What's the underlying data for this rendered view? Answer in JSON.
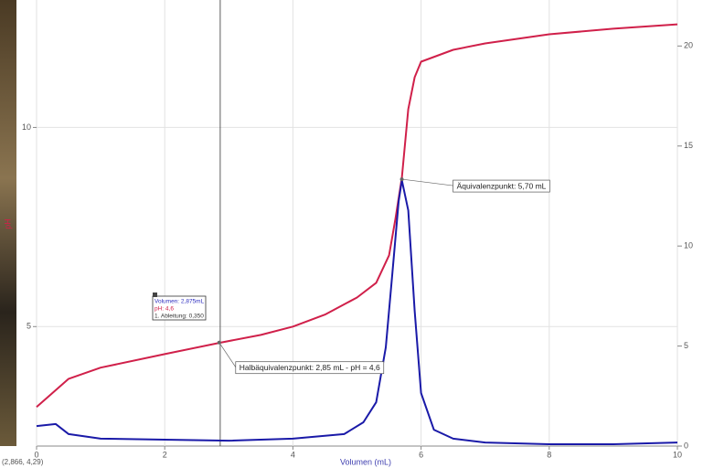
{
  "chart_data": {
    "type": "line",
    "x_label": "Volumen (mL)",
    "y_label": "pH",
    "xlim": [
      0,
      10
    ],
    "xticks": [
      0,
      2,
      4,
      6,
      8,
      10
    ],
    "ylim": [
      2.0,
      13.2
    ],
    "yticks": [
      5,
      10
    ],
    "y2lim": [
      0,
      22.3
    ],
    "y2ticks": [
      0,
      5,
      10,
      15,
      20
    ],
    "grid": true,
    "series": [
      {
        "color": "#d0204a",
        "axis": "y",
        "x": [
          0,
          0.5,
          1,
          2,
          2.85,
          3.5,
          4,
          4.5,
          5,
          5.3,
          5.5,
          5.6,
          5.7,
          5.8,
          5.9,
          6.0,
          6.5,
          7,
          8,
          9,
          10
        ],
        "values": [
          2.98,
          3.69,
          3.97,
          4.31,
          4.59,
          4.79,
          5.0,
          5.3,
          5.73,
          6.1,
          6.79,
          7.71,
          8.74,
          10.46,
          11.26,
          11.65,
          11.95,
          12.11,
          12.34,
          12.48,
          12.59
        ]
      },
      {
        "color": "#1a1aa8",
        "axis": "y2",
        "x": [
          0,
          0.3,
          0.5,
          1,
          2,
          3,
          4,
          4.8,
          5.1,
          5.3,
          5.45,
          5.55,
          5.65,
          5.7,
          5.8,
          5.9,
          6.0,
          6.2,
          6.5,
          7,
          8,
          9,
          10
        ],
        "values": [
          1.0,
          1.1,
          0.6,
          0.37,
          0.32,
          0.27,
          0.37,
          0.6,
          1.19,
          2.19,
          4.93,
          8.58,
          12.24,
          13.29,
          11.78,
          6.76,
          2.65,
          0.82,
          0.37,
          0.18,
          0.09,
          0.09,
          0.18
        ]
      }
    ],
    "annotations": [
      {
        "text": "Äquivalenzpunkt: 5,70 mL",
        "x": 5.7,
        "y": 8.7
      },
      {
        "text": "Halbäquivalenzpunkt: 2,85 mL - pH = 4,6",
        "x": 2.85,
        "y": 4.6
      }
    ],
    "cursor": {
      "x": 2.866,
      "label": "(2,866, 4,29)"
    },
    "info_box": [
      "Volumen: 2,875mL",
      "pH: 4,6",
      "1. Ableitung: 0,350"
    ]
  }
}
